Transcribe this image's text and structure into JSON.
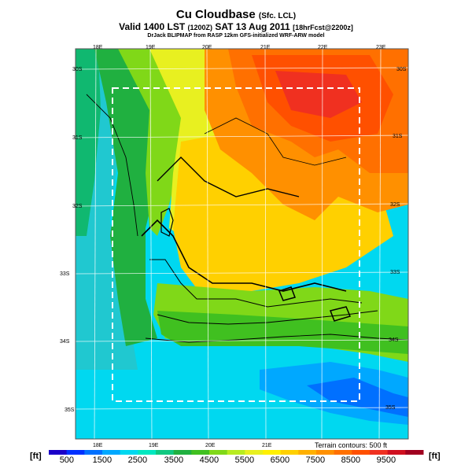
{
  "title": {
    "main": "Cu Cloudbase",
    "qualifier": "(Sfc. LCL)"
  },
  "subtitle": {
    "valid": "Valid 1400 LST",
    "valid_z": "(1200Z)",
    "date": "SAT 13 Aug 2011",
    "forecast": "[18hrFcst@2200z]"
  },
  "credit": "DrJack BLIPMAP from RASP 12km GFS-initialized WRF-ARW model",
  "terrain_note": "Terrain contours: 500 ft",
  "units": {
    "left": "[ft]",
    "right": "[ft]"
  },
  "colorbar": {
    "labels": [
      "500",
      "1500",
      "2500",
      "3500",
      "4500",
      "5500",
      "6500",
      "7500",
      "8500",
      "9500"
    ],
    "colors": [
      "#1a00c8",
      "#0030ff",
      "#0070ff",
      "#00a8ff",
      "#00d8f0",
      "#00e8c0",
      "#10c880",
      "#20b040",
      "#40c020",
      "#80d818",
      "#b8ec20",
      "#e8f020",
      "#fff000",
      "#ffd000",
      "#ffb000",
      "#ff9000",
      "#ff7000",
      "#ff5000",
      "#f03020",
      "#d01020",
      "#a00020"
    ]
  },
  "grid_labels": {
    "lon_top": [
      "18E",
      "19E",
      "20E",
      "21E",
      "22E",
      "23E"
    ],
    "lon_bottom": [
      "18E",
      "19E",
      "20E",
      "21E"
    ],
    "lat_left": [
      "30S",
      "31S",
      "32S",
      "33S",
      "34S",
      "35S"
    ],
    "lat_right": [
      "30S",
      "31S",
      "32S",
      "33S",
      "34S",
      "35S"
    ]
  }
}
